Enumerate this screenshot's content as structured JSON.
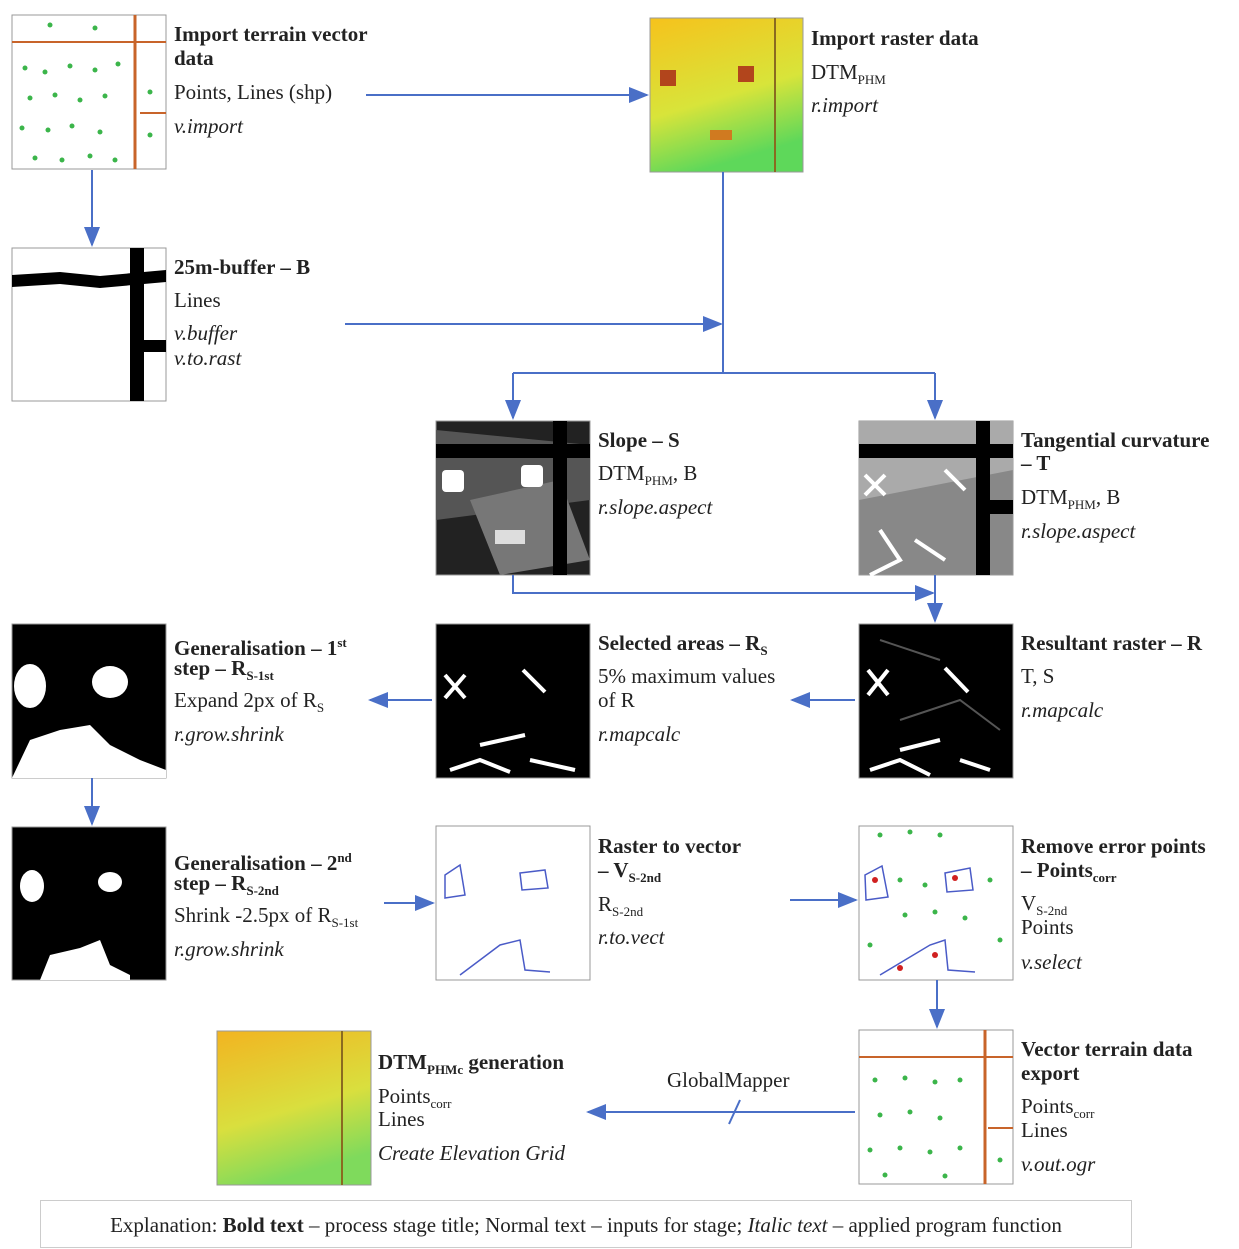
{
  "nodes": [
    {
      "lines": [
        [
          "Import terrain vector"
        ],
        [
          "data"
        ],
        [
          "Points, Lines (shp)"
        ],
        [
          "v.import"
        ]
      ]
    },
    {
      "lines": [
        [
          "Import raster data"
        ],
        [
          "DTM",
          "PHM"
        ],
        [
          "r.import"
        ]
      ]
    },
    {
      "lines": [
        [
          "25m-buffer – B"
        ],
        [
          "Lines"
        ],
        [
          "v.buffer"
        ],
        [
          "v.to.rast"
        ]
      ]
    },
    {
      "lines": [
        [
          "Slope – S"
        ],
        [
          "DTM",
          "PHM",
          ", B"
        ],
        [
          "r.slope.aspect"
        ]
      ]
    },
    {
      "lines": [
        [
          "Tangential curvature"
        ],
        [
          "– T"
        ],
        [
          "DTM",
          "PHM",
          ", B"
        ],
        [
          "r.slope.aspect"
        ]
      ]
    },
    {
      "lines": [
        [
          "Generalisation – 1",
          "st"
        ],
        [
          "step – R",
          "S-1st"
        ],
        [
          "Expand 2px of R",
          "S"
        ],
        [
          "r.grow.shrink"
        ]
      ]
    },
    {
      "lines": [
        [
          "Selected areas – R",
          "S"
        ],
        [
          "5% maximum values"
        ],
        [
          "of R"
        ],
        [
          "r.mapcalc"
        ]
      ]
    },
    {
      "lines": [
        [
          "Resultant raster – R"
        ],
        [
          "T, S"
        ],
        [
          "r.mapcalc"
        ]
      ]
    },
    {
      "lines": [
        [
          "Generalisation – 2",
          "nd"
        ],
        [
          "step – R",
          "S-2nd"
        ],
        [
          "Shrink -2.5px of R",
          "S-1st"
        ],
        [
          "r.grow.shrink"
        ]
      ]
    },
    {
      "lines": [
        [
          "Raster to vector"
        ],
        [
          "– V",
          "S-2nd"
        ],
        [
          "R",
          "S-2nd"
        ],
        [
          "r.to.vect"
        ]
      ]
    },
    {
      "lines": [
        [
          "Remove error points"
        ],
        [
          "– Points",
          "corr"
        ],
        [
          "V",
          "S-2nd"
        ],
        [
          "Points"
        ],
        [
          "v.select"
        ]
      ]
    },
    {
      "lines": [
        [
          "Vector terrain data"
        ],
        [
          "export"
        ],
        [
          "Points",
          "corr"
        ],
        [
          "Lines"
        ],
        [
          "v.out.ogr"
        ]
      ]
    },
    {
      "lines": [
        [
          "DTM",
          "PHMc",
          " generation"
        ],
        [
          "Points",
          "corr"
        ],
        [
          "Lines"
        ],
        [
          "Create Elevation Grid"
        ]
      ]
    }
  ],
  "edge_label": "GlobalMapper",
  "explanation": [
    "Explanation: ",
    "Bold text",
    " – process stage title; Normal text – inputs for stage; ",
    "Italic text",
    " – applied program function"
  ]
}
